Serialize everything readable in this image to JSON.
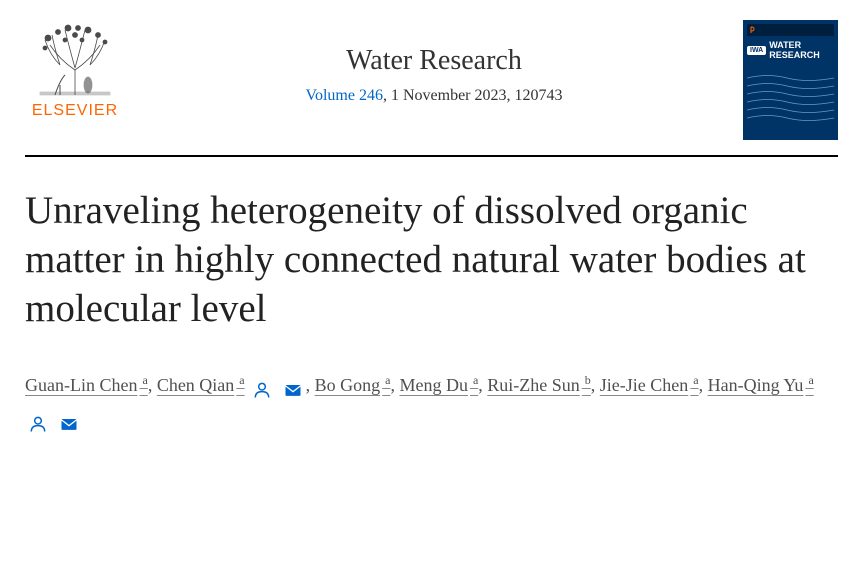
{
  "journal": {
    "publisher_label": "ELSEVIER",
    "name": "Water Research",
    "volume_text": "Volume 246",
    "date_text": ", 1 November 2023, 120743",
    "cover_title_line1": "WATER",
    "cover_title_line2": "RESEARCH",
    "iwa_label": "IWA"
  },
  "article": {
    "title": "Unraveling heterogeneity of dissolved organic matter in highly connected natural water bodies at molecular level"
  },
  "authors": [
    {
      "name": "Guan-Lin Chen",
      "affiliation": "a",
      "has_person_icon": false,
      "has_mail_icon": false
    },
    {
      "name": "Chen Qian",
      "affiliation": "a",
      "has_person_icon": true,
      "has_mail_icon": true
    },
    {
      "name": "Bo Gong",
      "affiliation": "a",
      "has_person_icon": false,
      "has_mail_icon": false
    },
    {
      "name": "Meng Du",
      "affiliation": "a",
      "has_person_icon": false,
      "has_mail_icon": false
    },
    {
      "name": "Rui-Zhe Sun",
      "affiliation": "b",
      "has_person_icon": false,
      "has_mail_icon": false
    },
    {
      "name": "Jie-Jie Chen",
      "affiliation": "a",
      "has_person_icon": false,
      "has_mail_icon": false
    },
    {
      "name": "Han-Qing Yu",
      "affiliation": "a",
      "has_person_icon": true,
      "has_mail_icon": true
    }
  ],
  "colors": {
    "elsevier_orange": "#ff6600",
    "link_blue": "#0066cc",
    "cover_blue": "#003366",
    "text_dark": "#222222",
    "text_gray": "#505050"
  }
}
